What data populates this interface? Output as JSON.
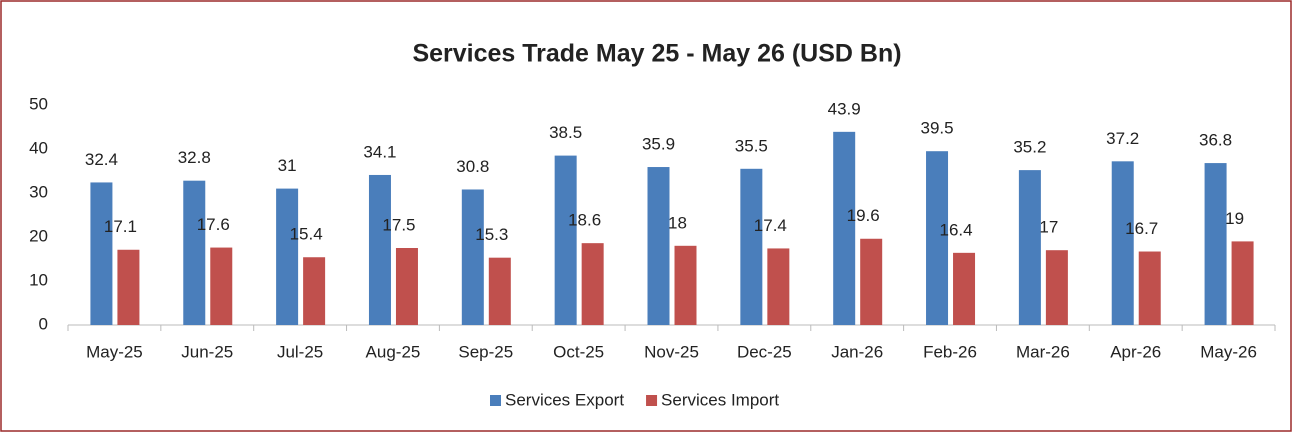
{
  "chart_data": {
    "type": "bar",
    "title": "Services Trade May 25 - May 26 (USD Bn)",
    "categories": [
      "May-25",
      "Jun-25",
      "Jul-25",
      "Aug-25",
      "Sep-25",
      "Oct-25",
      "Nov-25",
      "Dec-25",
      "Jan-26",
      "Feb-26",
      "Mar-26",
      "Apr-26",
      "May-26"
    ],
    "series": [
      {
        "name": "Services Export",
        "color": "#4a7ebb",
        "values": [
          32.4,
          32.8,
          31,
          34.1,
          30.8,
          38.5,
          35.9,
          35.5,
          43.9,
          39.5,
          35.2,
          37.2,
          36.8
        ]
      },
      {
        "name": "Services Import",
        "color": "#c0504d",
        "values": [
          17.1,
          17.6,
          15.4,
          17.5,
          15.3,
          18.6,
          18,
          17.4,
          19.6,
          16.4,
          17,
          16.7,
          19
        ]
      }
    ],
    "ylim": [
      0,
      50
    ],
    "yticks": [
      0,
      10,
      20,
      30,
      40,
      50
    ],
    "grid": false,
    "legend": "bottom"
  }
}
